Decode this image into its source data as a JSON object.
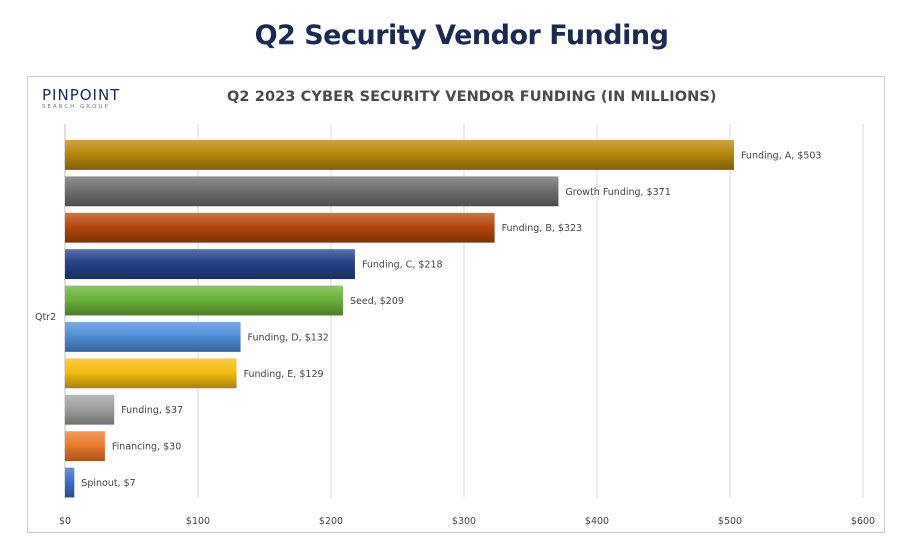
{
  "header": {
    "title": "Q2 Security Vendor Funding"
  },
  "logo": {
    "main": "PINPOINT",
    "sub": "SEARCH GROUP"
  },
  "chart_data": {
    "type": "bar",
    "orientation": "horizontal",
    "title": "Q2 2023 CYBER SECURITY VENDOR FUNDING (IN MILLIONS)",
    "category_axis_label": "Qtr2",
    "xlim": [
      0,
      600
    ],
    "xticks": [
      0,
      100,
      200,
      300,
      400,
      500,
      600
    ],
    "xtick_labels": [
      "$0",
      "$100",
      "$200",
      "$300",
      "$400",
      "$500",
      "$600"
    ],
    "grid": "vertical",
    "legend": "none",
    "series": [
      {
        "label": "Funding, A, $503",
        "value": 503,
        "color": "#b8860b"
      },
      {
        "label": "Growth Funding, $371",
        "value": 371,
        "color": "#6e6e6e"
      },
      {
        "label": "Funding, B, $323",
        "value": 323,
        "color": "#b5470e"
      },
      {
        "label": "Funding, C, $218",
        "value": 218,
        "color": "#24428a"
      },
      {
        "label": "Seed, $209",
        "value": 209,
        "color": "#6ab23a"
      },
      {
        "label": "Funding, D, $132",
        "value": 132,
        "color": "#4d8fd8"
      },
      {
        "label": "Funding, E, $129",
        "value": 129,
        "color": "#f4bb10"
      },
      {
        "label": "Funding, $37",
        "value": 37,
        "color": "#a0a0a0"
      },
      {
        "label": "Financing, $30",
        "value": 30,
        "color": "#ec7a2c"
      },
      {
        "label": "Spinout, $7",
        "value": 7,
        "color": "#3d6fc6"
      }
    ]
  }
}
